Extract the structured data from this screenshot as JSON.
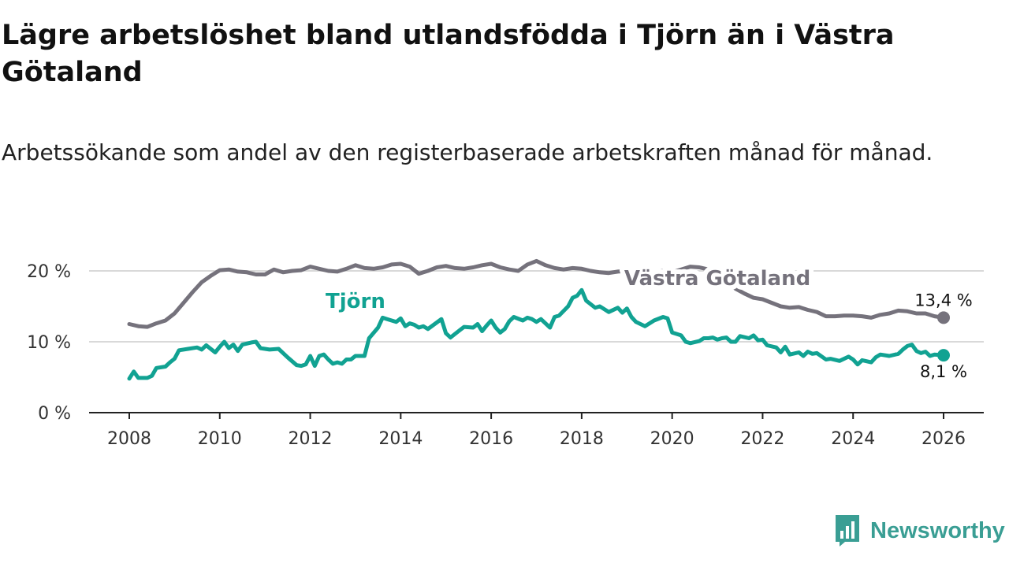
{
  "title": "Lägre arbetslöshet bland utlandsfödda i Tjörn än i Västra Götaland",
  "subtitle": "Arbetssökande som andel av den registerbaserade arbetskraften månad för månad.",
  "brand": {
    "name": "Newsworthy",
    "icon": "bar-chart-logo-icon",
    "color": "#3a9e94"
  },
  "chart_data": {
    "type": "line",
    "title": "Lägre arbetslöshet bland utlandsfödda i Tjörn än i Västra Götaland",
    "xlabel": "",
    "ylabel": "",
    "xlim": [
      2007.6,
      2027.0
    ],
    "ylim": [
      0,
      22
    ],
    "x_ticks": [
      2008,
      2010,
      2012,
      2014,
      2016,
      2018,
      2020,
      2022,
      2024,
      2026
    ],
    "x_tick_labels": [
      "2008",
      "2010",
      "2012",
      "2014",
      "2016",
      "2018",
      "2020",
      "2022",
      "2024",
      "2026"
    ],
    "y_ticks": [
      0,
      10,
      20
    ],
    "y_tick_labels": [
      "0 %",
      "10 %",
      "20 %"
    ],
    "grid": true,
    "series": [
      {
        "name": "Västra Götaland",
        "color": "#75727c",
        "end_label": "13,4 %",
        "points": [
          [
            2008.0,
            12.5
          ],
          [
            2008.2,
            12.2
          ],
          [
            2008.4,
            12.1
          ],
          [
            2008.6,
            12.6
          ],
          [
            2008.8,
            13.0
          ],
          [
            2009.0,
            14.0
          ],
          [
            2009.2,
            15.5
          ],
          [
            2009.4,
            17.0
          ],
          [
            2009.6,
            18.4
          ],
          [
            2009.8,
            19.3
          ],
          [
            2010.0,
            20.1
          ],
          [
            2010.2,
            20.2
          ],
          [
            2010.4,
            19.9
          ],
          [
            2010.6,
            19.8
          ],
          [
            2010.8,
            19.5
          ],
          [
            2011.0,
            19.5
          ],
          [
            2011.2,
            20.2
          ],
          [
            2011.4,
            19.8
          ],
          [
            2011.6,
            20.0
          ],
          [
            2011.8,
            20.1
          ],
          [
            2012.0,
            20.6
          ],
          [
            2012.2,
            20.3
          ],
          [
            2012.4,
            20.0
          ],
          [
            2012.6,
            19.9
          ],
          [
            2012.8,
            20.3
          ],
          [
            2013.0,
            20.8
          ],
          [
            2013.2,
            20.4
          ],
          [
            2013.4,
            20.3
          ],
          [
            2013.6,
            20.5
          ],
          [
            2013.8,
            20.9
          ],
          [
            2014.0,
            21.0
          ],
          [
            2014.2,
            20.6
          ],
          [
            2014.4,
            19.6
          ],
          [
            2014.6,
            20.0
          ],
          [
            2014.8,
            20.5
          ],
          [
            2015.0,
            20.7
          ],
          [
            2015.2,
            20.4
          ],
          [
            2015.4,
            20.3
          ],
          [
            2015.6,
            20.5
          ],
          [
            2015.8,
            20.8
          ],
          [
            2016.0,
            21.0
          ],
          [
            2016.2,
            20.5
          ],
          [
            2016.4,
            20.2
          ],
          [
            2016.6,
            20.0
          ],
          [
            2016.8,
            20.9
          ],
          [
            2017.0,
            21.4
          ],
          [
            2017.2,
            20.8
          ],
          [
            2017.4,
            20.4
          ],
          [
            2017.6,
            20.2
          ],
          [
            2017.8,
            20.4
          ],
          [
            2018.0,
            20.3
          ],
          [
            2018.2,
            20.0
          ],
          [
            2018.4,
            19.8
          ],
          [
            2018.6,
            19.7
          ],
          [
            2018.8,
            19.9
          ],
          [
            2019.0,
            20.0
          ],
          [
            2019.2,
            19.8
          ],
          [
            2019.4,
            19.7
          ],
          [
            2019.6,
            19.8
          ],
          [
            2019.8,
            20.0
          ],
          [
            2020.0,
            19.8
          ],
          [
            2020.2,
            20.2
          ],
          [
            2020.4,
            20.6
          ],
          [
            2020.6,
            20.5
          ],
          [
            2020.8,
            20.2
          ],
          [
            2021.0,
            19.8
          ],
          [
            2021.2,
            18.5
          ],
          [
            2021.4,
            17.5
          ],
          [
            2021.6,
            16.8
          ],
          [
            2021.8,
            16.2
          ],
          [
            2022.0,
            16.0
          ],
          [
            2022.2,
            15.5
          ],
          [
            2022.4,
            15.0
          ],
          [
            2022.6,
            14.8
          ],
          [
            2022.8,
            14.9
          ],
          [
            2023.0,
            14.5
          ],
          [
            2023.2,
            14.2
          ],
          [
            2023.4,
            13.6
          ],
          [
            2023.6,
            13.6
          ],
          [
            2023.8,
            13.7
          ],
          [
            2024.0,
            13.7
          ],
          [
            2024.2,
            13.6
          ],
          [
            2024.4,
            13.4
          ],
          [
            2024.6,
            13.8
          ],
          [
            2024.8,
            14.0
          ],
          [
            2025.0,
            14.4
          ],
          [
            2025.2,
            14.3
          ],
          [
            2025.4,
            14.0
          ],
          [
            2025.6,
            14.0
          ],
          [
            2025.8,
            13.6
          ],
          [
            2026.0,
            13.4
          ]
        ]
      },
      {
        "name": "Tjörn",
        "color": "#11a292",
        "end_label": "8,1 %",
        "points": [
          [
            2008.0,
            4.8
          ],
          [
            2008.1,
            5.8
          ],
          [
            2008.2,
            4.9
          ],
          [
            2008.4,
            4.9
          ],
          [
            2008.5,
            5.2
          ],
          [
            2008.6,
            6.3
          ],
          [
            2008.8,
            6.5
          ],
          [
            2008.9,
            7.1
          ],
          [
            2009.0,
            7.6
          ],
          [
            2009.1,
            8.8
          ],
          [
            2009.3,
            9.0
          ],
          [
            2009.5,
            9.2
          ],
          [
            2009.6,
            8.9
          ],
          [
            2009.7,
            9.5
          ],
          [
            2009.9,
            8.5
          ],
          [
            2010.0,
            9.3
          ],
          [
            2010.1,
            10.0
          ],
          [
            2010.2,
            9.1
          ],
          [
            2010.3,
            9.6
          ],
          [
            2010.4,
            8.7
          ],
          [
            2010.5,
            9.6
          ],
          [
            2010.7,
            9.9
          ],
          [
            2010.8,
            10.0
          ],
          [
            2010.9,
            9.1
          ],
          [
            2011.1,
            8.9
          ],
          [
            2011.3,
            9.0
          ],
          [
            2011.5,
            7.8
          ],
          [
            2011.7,
            6.7
          ],
          [
            2011.8,
            6.6
          ],
          [
            2011.9,
            6.8
          ],
          [
            2012.0,
            8.0
          ],
          [
            2012.1,
            6.6
          ],
          [
            2012.2,
            8.0
          ],
          [
            2012.3,
            8.2
          ],
          [
            2012.4,
            7.5
          ],
          [
            2012.5,
            6.9
          ],
          [
            2012.6,
            7.1
          ],
          [
            2012.7,
            6.9
          ],
          [
            2012.8,
            7.5
          ],
          [
            2012.9,
            7.5
          ],
          [
            2013.0,
            8.0
          ],
          [
            2013.2,
            8.0
          ],
          [
            2013.3,
            10.5
          ],
          [
            2013.5,
            12.0
          ],
          [
            2013.6,
            13.4
          ],
          [
            2013.7,
            13.2
          ],
          [
            2013.9,
            12.8
          ],
          [
            2014.0,
            13.3
          ],
          [
            2014.1,
            12.2
          ],
          [
            2014.2,
            12.6
          ],
          [
            2014.3,
            12.4
          ],
          [
            2014.4,
            12.0
          ],
          [
            2014.5,
            12.2
          ],
          [
            2014.6,
            11.8
          ],
          [
            2014.9,
            13.2
          ],
          [
            2015.0,
            11.2
          ],
          [
            2015.1,
            10.6
          ],
          [
            2015.3,
            11.6
          ],
          [
            2015.4,
            12.1
          ],
          [
            2015.6,
            12.0
          ],
          [
            2015.7,
            12.5
          ],
          [
            2015.8,
            11.5
          ],
          [
            2015.9,
            12.3
          ],
          [
            2016.0,
            13.0
          ],
          [
            2016.1,
            12.0
          ],
          [
            2016.2,
            11.3
          ],
          [
            2016.3,
            11.8
          ],
          [
            2016.4,
            12.9
          ],
          [
            2016.5,
            13.5
          ],
          [
            2016.7,
            13.0
          ],
          [
            2016.8,
            13.4
          ],
          [
            2016.9,
            13.2
          ],
          [
            2017.0,
            12.8
          ],
          [
            2017.1,
            13.2
          ],
          [
            2017.3,
            12.0
          ],
          [
            2017.4,
            13.5
          ],
          [
            2017.5,
            13.7
          ],
          [
            2017.7,
            15.0
          ],
          [
            2017.8,
            16.2
          ],
          [
            2017.9,
            16.5
          ],
          [
            2018.0,
            17.3
          ],
          [
            2018.1,
            15.8
          ],
          [
            2018.3,
            14.8
          ],
          [
            2018.4,
            15.0
          ],
          [
            2018.5,
            14.6
          ],
          [
            2018.6,
            14.2
          ],
          [
            2018.8,
            14.8
          ],
          [
            2018.9,
            14.1
          ],
          [
            2019.0,
            14.7
          ],
          [
            2019.1,
            13.5
          ],
          [
            2019.2,
            12.8
          ],
          [
            2019.4,
            12.2
          ],
          [
            2019.5,
            12.6
          ],
          [
            2019.6,
            13.0
          ],
          [
            2019.8,
            13.5
          ],
          [
            2019.9,
            13.3
          ],
          [
            2020.0,
            11.3
          ],
          [
            2020.2,
            10.9
          ],
          [
            2020.3,
            10.0
          ],
          [
            2020.4,
            9.8
          ],
          [
            2020.6,
            10.1
          ],
          [
            2020.7,
            10.5
          ],
          [
            2020.8,
            10.5
          ],
          [
            2020.9,
            10.6
          ],
          [
            2021.0,
            10.3
          ],
          [
            2021.1,
            10.5
          ],
          [
            2021.2,
            10.6
          ],
          [
            2021.3,
            10.0
          ],
          [
            2021.4,
            10.0
          ],
          [
            2021.5,
            10.8
          ],
          [
            2021.7,
            10.5
          ],
          [
            2021.8,
            10.9
          ],
          [
            2021.9,
            10.2
          ],
          [
            2022.0,
            10.3
          ],
          [
            2022.1,
            9.5
          ],
          [
            2022.3,
            9.2
          ],
          [
            2022.4,
            8.5
          ],
          [
            2022.5,
            9.3
          ],
          [
            2022.6,
            8.2
          ],
          [
            2022.8,
            8.5
          ],
          [
            2022.9,
            8.0
          ],
          [
            2023.0,
            8.6
          ],
          [
            2023.1,
            8.3
          ],
          [
            2023.2,
            8.4
          ],
          [
            2023.4,
            7.5
          ],
          [
            2023.5,
            7.6
          ],
          [
            2023.7,
            7.3
          ],
          [
            2023.9,
            7.9
          ],
          [
            2024.0,
            7.5
          ],
          [
            2024.1,
            6.8
          ],
          [
            2024.2,
            7.4
          ],
          [
            2024.4,
            7.1
          ],
          [
            2024.5,
            7.8
          ],
          [
            2024.6,
            8.2
          ],
          [
            2024.8,
            8.0
          ],
          [
            2025.0,
            8.3
          ],
          [
            2025.1,
            8.9
          ],
          [
            2025.2,
            9.4
          ],
          [
            2025.3,
            9.6
          ],
          [
            2025.4,
            8.7
          ],
          [
            2025.5,
            8.4
          ],
          [
            2025.6,
            8.6
          ],
          [
            2025.7,
            8.0
          ],
          [
            2025.8,
            8.2
          ],
          [
            2026.0,
            8.1
          ]
        ]
      }
    ],
    "annotations": [
      {
        "text": "Tjörn",
        "series": "Tjörn",
        "x": 2013.0,
        "y": 14.8
      },
      {
        "text": "Västra Götaland",
        "series": "Västra Götaland",
        "x": 2021.0,
        "y": 18.0
      }
    ]
  }
}
